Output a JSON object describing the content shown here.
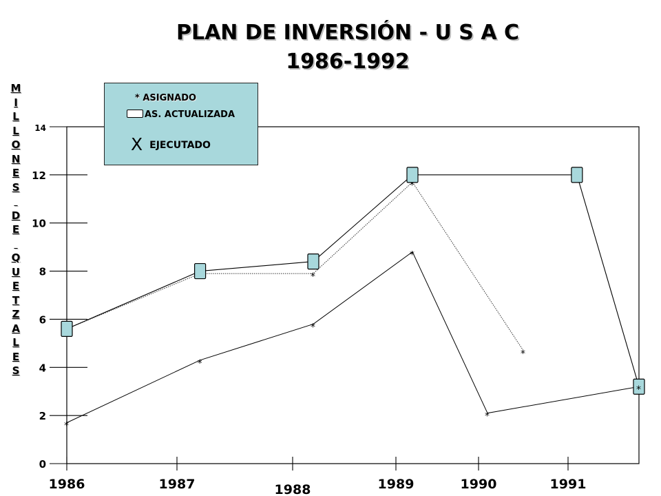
{
  "chart_data": {
    "type": "line",
    "title": "PLAN DE INVERSIÓN - U S A C",
    "subtitle": "1986-1992",
    "ylabel": "MILLONES DE QUETZALES",
    "ylim": [
      0,
      14
    ],
    "y_ticks": [
      "0",
      "2",
      "4",
      "6",
      "8",
      "10",
      "12",
      "14"
    ],
    "x_ticks": [
      "1986",
      "1987",
      "1988",
      "1989",
      "1990",
      "1991"
    ],
    "legend": {
      "asignado": "ASIGNADO",
      "asignado_symbol": "*",
      "actualizada": "AS. ACTUALIZADA",
      "ejecutado": "EJECUTADO",
      "ejecutado_symbol": "X"
    },
    "series": [
      {
        "name": "ASIGNADO",
        "points": [
          [
            1986,
            5.6
          ],
          [
            1987.2,
            7.9
          ],
          [
            1988.2,
            7.9
          ],
          [
            1989.2,
            11.7
          ],
          [
            1990.5,
            4.7
          ]
        ]
      },
      {
        "name": "AS. ACTUALIZADA",
        "points": [
          [
            1986,
            5.6
          ],
          [
            1987.2,
            8.0
          ],
          [
            1988.2,
            8.4
          ],
          [
            1989.2,
            12.0
          ],
          [
            1991.1,
            12.0
          ],
          [
            1991.8,
            3.2
          ]
        ]
      },
      {
        "name": "EJECUTADO",
        "points": [
          [
            1986,
            1.7
          ],
          [
            1987.2,
            4.3
          ],
          [
            1988.2,
            5.8
          ],
          [
            1989.2,
            8.8
          ],
          [
            1990.1,
            2.1
          ],
          [
            1991.8,
            3.2
          ]
        ]
      }
    ],
    "grid": false,
    "legend_position": "top-left"
  }
}
